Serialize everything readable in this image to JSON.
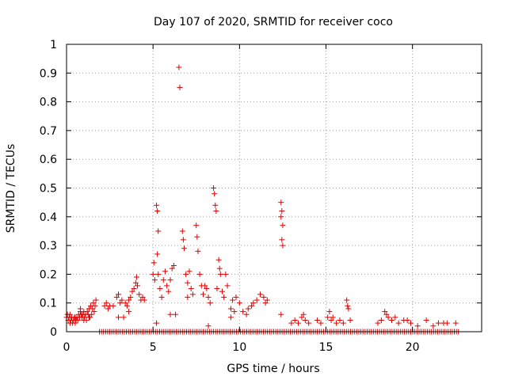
{
  "chart_data": {
    "type": "scatter",
    "title": "Day 107 of 2020, SRMTID for receiver coco",
    "xlabel": "GPS time / hours",
    "ylabel": "SRMTID / TECUs",
    "xlim": [
      0,
      24
    ],
    "ylim": [
      0,
      1
    ],
    "xticks": [
      0,
      5,
      10,
      15,
      20
    ],
    "xtick_labels": [
      "0",
      "5",
      "10",
      "15",
      "20"
    ],
    "yticks": [
      0,
      0.1,
      0.2,
      0.3,
      0.4,
      0.5,
      0.6,
      0.7,
      0.8,
      0.9,
      1
    ],
    "ytick_labels": [
      "0",
      "0.1",
      "0.2",
      "0.3",
      "0.4",
      "0.5",
      "0.6",
      "0.7",
      "0.8",
      "0.9",
      "1"
    ],
    "grid": true,
    "marker": "+",
    "color": "#e00000",
    "series": [
      {
        "name": "SRMTID",
        "points": [
          [
            0.0,
            0.05
          ],
          [
            0.05,
            0.06
          ],
          [
            0.1,
            0.04
          ],
          [
            0.15,
            0.05
          ],
          [
            0.2,
            0.03
          ],
          [
            0.25,
            0.04
          ],
          [
            0.3,
            0.05
          ],
          [
            0.35,
            0.03
          ],
          [
            0.4,
            0.04
          ],
          [
            0.45,
            0.05
          ],
          [
            0.5,
            0.03
          ],
          [
            0.55,
            0.04
          ],
          [
            0.6,
            0.05
          ],
          [
            0.65,
            0.04
          ],
          [
            0.7,
            0.06
          ],
          [
            0.75,
            0.05
          ],
          [
            0.8,
            0.07
          ],
          [
            0.85,
            0.06
          ],
          [
            0.9,
            0.05
          ],
          [
            0.95,
            0.06
          ],
          [
            1.0,
            0.07
          ],
          [
            1.05,
            0.05
          ],
          [
            1.1,
            0.06
          ],
          [
            1.15,
            0.04
          ],
          [
            1.2,
            0.07
          ],
          [
            1.25,
            0.06
          ],
          [
            1.3,
            0.08
          ],
          [
            1.35,
            0.05
          ],
          [
            1.4,
            0.09
          ],
          [
            1.45,
            0.06
          ],
          [
            1.5,
            0.08
          ],
          [
            1.55,
            0.1
          ],
          [
            1.6,
            0.07
          ],
          [
            1.65,
            0.09
          ],
          [
            1.7,
            0.11
          ],
          [
            0.2,
            0.06
          ],
          [
            0.5,
            0.05
          ],
          [
            0.8,
            0.08
          ],
          [
            1.0,
            0.04
          ],
          [
            1.3,
            0.05
          ],
          [
            2.2,
            0.09
          ],
          [
            2.3,
            0.1
          ],
          [
            2.4,
            0.08
          ],
          [
            2.5,
            0.09
          ],
          [
            2.7,
            0.09
          ],
          [
            2.9,
            0.12
          ],
          [
            3.0,
            0.13
          ],
          [
            3.1,
            0.1
          ],
          [
            3.2,
            0.11
          ],
          [
            3.4,
            0.1
          ],
          [
            3.5,
            0.09
          ],
          [
            3.6,
            0.11
          ],
          [
            3.7,
            0.12
          ],
          [
            3.8,
            0.14
          ],
          [
            3.9,
            0.15
          ],
          [
            4.0,
            0.17
          ],
          [
            4.05,
            0.19
          ],
          [
            4.1,
            0.16
          ],
          [
            4.2,
            0.13
          ],
          [
            4.3,
            0.11
          ],
          [
            4.4,
            0.12
          ],
          [
            4.5,
            0.11
          ],
          [
            3.0,
            0.05
          ],
          [
            3.3,
            0.05
          ],
          [
            3.6,
            0.07
          ],
          [
            5.0,
            0.2
          ],
          [
            5.05,
            0.24
          ],
          [
            5.1,
            0.18
          ],
          [
            5.2,
            0.44
          ],
          [
            5.25,
            0.42
          ],
          [
            5.3,
            0.35
          ],
          [
            5.25,
            0.27
          ],
          [
            5.3,
            0.2
          ],
          [
            5.2,
            0.03
          ],
          [
            5.4,
            0.15
          ],
          [
            5.5,
            0.12
          ],
          [
            5.6,
            0.18
          ],
          [
            5.7,
            0.21
          ],
          [
            5.8,
            0.16
          ],
          [
            5.9,
            0.14
          ],
          [
            6.0,
            0.18
          ],
          [
            6.1,
            0.22
          ],
          [
            6.2,
            0.23
          ],
          [
            6.3,
            0.06
          ],
          [
            6.5,
            0.92
          ],
          [
            6.55,
            0.85
          ],
          [
            6.7,
            0.35
          ],
          [
            6.75,
            0.32
          ],
          [
            6.8,
            0.29
          ],
          [
            6.9,
            0.2
          ],
          [
            7.0,
            0.17
          ],
          [
            7.1,
            0.21
          ],
          [
            7.2,
            0.15
          ],
          [
            7.3,
            0.13
          ],
          [
            7.5,
            0.37
          ],
          [
            7.55,
            0.33
          ],
          [
            7.6,
            0.28
          ],
          [
            7.7,
            0.2
          ],
          [
            7.8,
            0.16
          ],
          [
            7.9,
            0.13
          ],
          [
            8.0,
            0.16
          ],
          [
            8.1,
            0.15
          ],
          [
            8.2,
            0.12
          ],
          [
            8.3,
            0.1
          ],
          [
            8.5,
            0.5
          ],
          [
            8.55,
            0.48
          ],
          [
            8.6,
            0.44
          ],
          [
            8.65,
            0.42
          ],
          [
            8.7,
            0.15
          ],
          [
            8.8,
            0.25
          ],
          [
            8.85,
            0.22
          ],
          [
            8.9,
            0.2
          ],
          [
            9.0,
            0.14
          ],
          [
            9.1,
            0.12
          ],
          [
            9.2,
            0.2
          ],
          [
            9.3,
            0.16
          ],
          [
            9.5,
            0.08
          ],
          [
            9.6,
            0.11
          ],
          [
            9.7,
            0.07
          ],
          [
            9.8,
            0.12
          ],
          [
            10.0,
            0.1
          ],
          [
            10.2,
            0.07
          ],
          [
            10.4,
            0.06
          ],
          [
            10.5,
            0.08
          ],
          [
            10.7,
            0.09
          ],
          [
            10.8,
            0.1
          ],
          [
            11.0,
            0.11
          ],
          [
            11.2,
            0.13
          ],
          [
            11.4,
            0.12
          ],
          [
            11.5,
            0.1
          ],
          [
            11.6,
            0.11
          ],
          [
            12.4,
            0.45
          ],
          [
            12.45,
            0.42
          ],
          [
            12.4,
            0.4
          ],
          [
            12.5,
            0.37
          ],
          [
            12.45,
            0.32
          ],
          [
            12.5,
            0.3
          ],
          [
            12.4,
            0.06
          ],
          [
            8.2,
            0.02
          ],
          [
            7.0,
            0.12
          ],
          [
            6.0,
            0.06
          ],
          [
            9.5,
            0.05
          ],
          [
            13.0,
            0.03
          ],
          [
            13.2,
            0.04
          ],
          [
            13.4,
            0.03
          ],
          [
            13.6,
            0.05
          ],
          [
            13.7,
            0.06
          ],
          [
            13.8,
            0.04
          ],
          [
            14.0,
            0.03
          ],
          [
            14.5,
            0.04
          ],
          [
            14.7,
            0.03
          ],
          [
            15.1,
            0.05
          ],
          [
            15.2,
            0.07
          ],
          [
            15.3,
            0.04
          ],
          [
            15.4,
            0.05
          ],
          [
            15.6,
            0.03
          ],
          [
            15.8,
            0.04
          ],
          [
            16.0,
            0.03
          ],
          [
            16.2,
            0.11
          ],
          [
            16.25,
            0.09
          ],
          [
            16.3,
            0.08
          ],
          [
            16.4,
            0.04
          ],
          [
            18.0,
            0.03
          ],
          [
            18.2,
            0.04
          ],
          [
            18.4,
            0.07
          ],
          [
            18.5,
            0.06
          ],
          [
            18.6,
            0.05
          ],
          [
            18.8,
            0.04
          ],
          [
            19.0,
            0.05
          ],
          [
            19.2,
            0.03
          ],
          [
            19.5,
            0.04
          ],
          [
            19.7,
            0.04
          ],
          [
            19.9,
            0.03
          ],
          [
            20.3,
            0.02
          ],
          [
            20.8,
            0.04
          ],
          [
            21.2,
            0.02
          ],
          [
            21.5,
            0.03
          ],
          [
            21.8,
            0.03
          ],
          [
            22.0,
            0.03
          ],
          [
            22.5,
            0.03
          ]
        ]
      },
      {
        "name": "SRMTID baseline",
        "x_start": 1.9,
        "x_end": 22.7,
        "x_step": 0.12,
        "y": 0.0
      }
    ]
  }
}
